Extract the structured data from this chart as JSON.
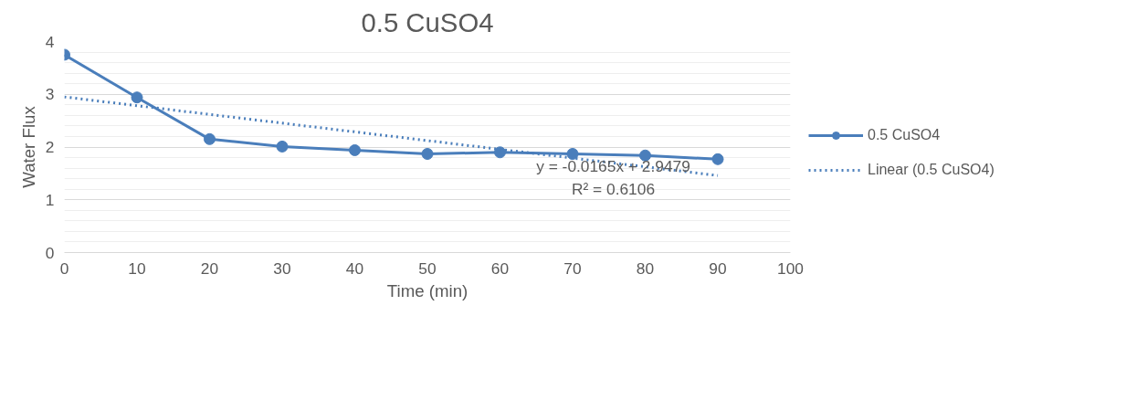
{
  "chart_data": {
    "type": "line",
    "title": "0.5 CuSO4",
    "xlabel": "Time (min)",
    "ylabel": "Water Flux",
    "x": [
      0,
      10,
      20,
      30,
      40,
      50,
      60,
      70,
      80,
      90
    ],
    "series": [
      {
        "name": "0.5 CuSO4",
        "color": "#4a7ebb",
        "values": [
          3.75,
          2.94,
          2.15,
          2.01,
          1.94,
          1.87,
          1.9,
          1.87,
          1.84,
          1.77
        ],
        "marker": "circle",
        "line_style": "solid"
      },
      {
        "name": "Linear (0.5 CuSO4)",
        "color": "#4a7ebb",
        "x": [
          0,
          90
        ],
        "values": [
          2.95,
          1.46
        ],
        "marker": "none",
        "line_style": "dotted"
      }
    ],
    "annotations": [
      "y = -0.0165x + 2.9479",
      "R² = 0.6106"
    ],
    "xlim": [
      0,
      100
    ],
    "xticks": [
      0,
      10,
      20,
      30,
      40,
      50,
      60,
      70,
      80,
      90,
      100
    ],
    "ylim": [
      0,
      4
    ],
    "yticks": [
      0,
      1,
      2,
      3,
      4
    ],
    "grid": "y",
    "legend": "right"
  }
}
